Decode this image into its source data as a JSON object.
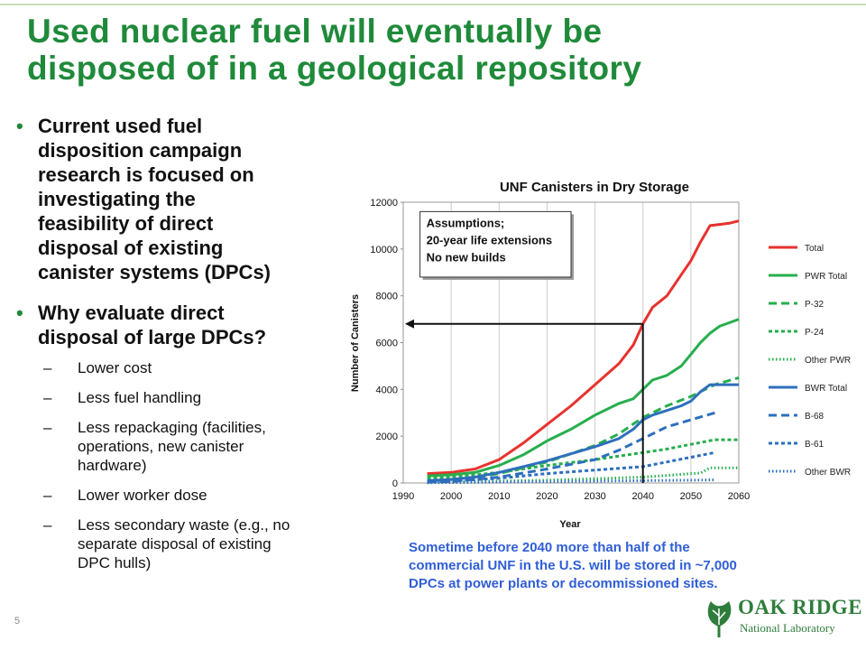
{
  "slide": {
    "title_lines": [
      "Used nuclear fuel will eventually be",
      "disposed of in a geological repository"
    ],
    "page_number": "5",
    "colors": {
      "title": "#1f8a3a",
      "caption": "#2f5ed6",
      "bullet": "#1f8a3a"
    }
  },
  "bullets": [
    {
      "lines": [
        "Current used fuel",
        "disposition campaign",
        "research is focused on",
        "investigating the",
        "feasibility of direct",
        "disposal of existing",
        "canister systems (DPCs)"
      ]
    },
    {
      "lines": [
        "Why evaluate direct",
        "disposal of large DPCs?"
      ],
      "sub": [
        {
          "lines": [
            "Lower cost"
          ]
        },
        {
          "lines": [
            "Less fuel handling"
          ]
        },
        {
          "lines": [
            "Less repackaging (facilities,",
            "operations, new canister",
            "hardware)"
          ]
        },
        {
          "lines": [
            "Lower worker dose"
          ]
        },
        {
          "lines": [
            "Less secondary waste (e.g., no",
            "separate disposal of existing",
            "DPC hulls)"
          ]
        }
      ]
    }
  ],
  "caption_lines": [
    "Sometime before 2040 more than half of the",
    "commercial UNF in the U.S. will be stored in ~7,000",
    "DPCs at power plants or decommissioned sites."
  ],
  "logo": {
    "line1": "OAK RIDGE",
    "line2": "National Laboratory"
  },
  "chart_data": {
    "type": "line",
    "title": "UNF Canisters in Dry Storage",
    "xlabel": "Year",
    "ylabel": "Number of Canisters",
    "xlim": [
      1990,
      2060
    ],
    "ylim": [
      0,
      12000
    ],
    "xticks": [
      1990,
      2000,
      2010,
      2020,
      2030,
      2040,
      2050,
      2060
    ],
    "yticks": [
      0,
      2000,
      4000,
      6000,
      8000,
      10000,
      12000
    ],
    "grid": "vertical",
    "legend_position": "right",
    "annotation": {
      "lines": [
        "Assumptions;",
        "20-year life extensions",
        "No new builds"
      ]
    },
    "marker": {
      "x": 2040,
      "y": 6800
    },
    "series": [
      {
        "name": "Total",
        "color": "#e8322e",
        "dash": "solid",
        "x": [
          1995,
          2000,
          2005,
          2010,
          2015,
          2020,
          2025,
          2030,
          2035,
          2038,
          2040,
          2042,
          2045,
          2048,
          2050,
          2052,
          2054,
          2056,
          2058,
          2060
        ],
        "y": [
          400,
          450,
          600,
          1000,
          1700,
          2500,
          3300,
          4200,
          5100,
          5900,
          6800,
          7500,
          8000,
          8900,
          9500,
          10300,
          11000,
          11050,
          11100,
          11200
        ]
      },
      {
        "name": "PWR Total",
        "color": "#27ae4e",
        "dash": "solid",
        "x": [
          1995,
          2000,
          2005,
          2010,
          2015,
          2020,
          2025,
          2030,
          2035,
          2038,
          2040,
          2042,
          2045,
          2048,
          2050,
          2052,
          2054,
          2056,
          2058,
          2060
        ],
        "y": [
          300,
          350,
          450,
          750,
          1200,
          1800,
          2300,
          2900,
          3400,
          3600,
          4000,
          4400,
          4600,
          5000,
          5500,
          6000,
          6400,
          6700,
          6850,
          7000
        ]
      },
      {
        "name": "P-32",
        "color": "#27ae4e",
        "dash": "long",
        "x": [
          1995,
          2000,
          2010,
          2020,
          2030,
          2035,
          2040,
          2045,
          2050,
          2055,
          2060
        ],
        "y": [
          50,
          100,
          400,
          900,
          1600,
          2100,
          2800,
          3300,
          3700,
          4200,
          4500
        ]
      },
      {
        "name": "P-24",
        "color": "#27ae4e",
        "dash": "short",
        "x": [
          1995,
          2000,
          2010,
          2020,
          2030,
          2040,
          2045,
          2050,
          2055,
          2060
        ],
        "y": [
          200,
          250,
          450,
          750,
          1000,
          1300,
          1450,
          1650,
          1850,
          1850
        ]
      },
      {
        "name": "Other PWR",
        "color": "#27ae4e",
        "dash": "dot",
        "x": [
          1995,
          2000,
          2010,
          2020,
          2030,
          2040,
          2045,
          2050,
          2052,
          2054,
          2056,
          2060
        ],
        "y": [
          20,
          40,
          80,
          120,
          180,
          250,
          320,
          400,
          420,
          650,
          650,
          650
        ]
      },
      {
        "name": "BWR Total",
        "color": "#2e6fbd",
        "dash": "solid",
        "x": [
          1995,
          2000,
          2005,
          2010,
          2015,
          2020,
          2025,
          2030,
          2035,
          2038,
          2040,
          2042,
          2045,
          2048,
          2050,
          2052,
          2054,
          2056,
          2058,
          2060
        ],
        "y": [
          100,
          150,
          250,
          450,
          700,
          950,
          1250,
          1550,
          1900,
          2300,
          2700,
          2900,
          3100,
          3300,
          3500,
          3900,
          4200,
          4200,
          4200,
          4200
        ]
      },
      {
        "name": "B-68",
        "color": "#2e6fbd",
        "dash": "long",
        "x": [
          1995,
          2000,
          2010,
          2020,
          2030,
          2035,
          2040,
          2045,
          2050,
          2055
        ],
        "y": [
          30,
          60,
          250,
          600,
          1000,
          1400,
          1900,
          2400,
          2700,
          3000
        ]
      },
      {
        "name": "B-61",
        "color": "#2e6fbd",
        "dash": "short",
        "x": [
          1995,
          2000,
          2010,
          2020,
          2030,
          2040,
          2045,
          2050,
          2055
        ],
        "y": [
          50,
          80,
          200,
          400,
          550,
          700,
          900,
          1100,
          1300
        ]
      },
      {
        "name": "Other BWR",
        "color": "#2e6fbd",
        "dash": "dot",
        "x": [
          1995,
          2000,
          2010,
          2020,
          2030,
          2040,
          2050,
          2055
        ],
        "y": [
          10,
          20,
          40,
          60,
          80,
          100,
          120,
          130
        ]
      }
    ]
  }
}
